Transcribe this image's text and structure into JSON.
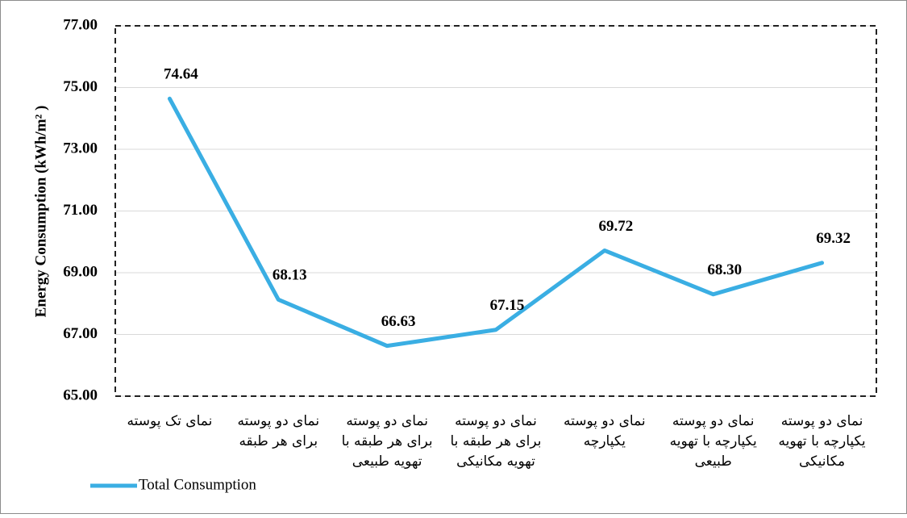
{
  "chart_data": {
    "type": "line",
    "y_label": "Energy Consumption (kWh/m² )",
    "categories": [
      [
        "نمای تک پوسته"
      ],
      [
        "نمای دو پوسته",
        "برای هر طبقه"
      ],
      [
        "نمای دو پوسته",
        "برای هر طبقه با",
        "تهویه طبیعی"
      ],
      [
        "نمای دو پوسته",
        "برای هر طبقه با",
        "تهویه مکانیکی"
      ],
      [
        "نمای دو پوسته",
        "یکپارچه"
      ],
      [
        "نمای دو پوسته",
        "یکپارچه با تهویه",
        "طبیعی"
      ],
      [
        "نمای دو پوسته",
        "یکپارچه با تهویه",
        "مکانیکی"
      ]
    ],
    "series": [
      {
        "name": "Total Consumption",
        "color": "#3aaee3",
        "values": [
          74.64,
          68.13,
          66.63,
          67.15,
          69.72,
          68.3,
          69.32
        ],
        "value_labels": [
          "74.64",
          "68.13",
          "66.63",
          "67.15",
          "69.72",
          "68.30",
          "69.32"
        ]
      }
    ],
    "ylim": [
      65,
      77
    ],
    "yticks": [
      {
        "value": 65,
        "label": "65.00"
      },
      {
        "value": 67,
        "label": "67.00"
      },
      {
        "value": 69,
        "label": "69.00"
      },
      {
        "value": 71,
        "label": "71.00"
      },
      {
        "value": 73,
        "label": "73.00"
      },
      {
        "value": 75,
        "label": "75.00"
      },
      {
        "value": 77,
        "label": "77.00"
      }
    ],
    "grid": true
  }
}
